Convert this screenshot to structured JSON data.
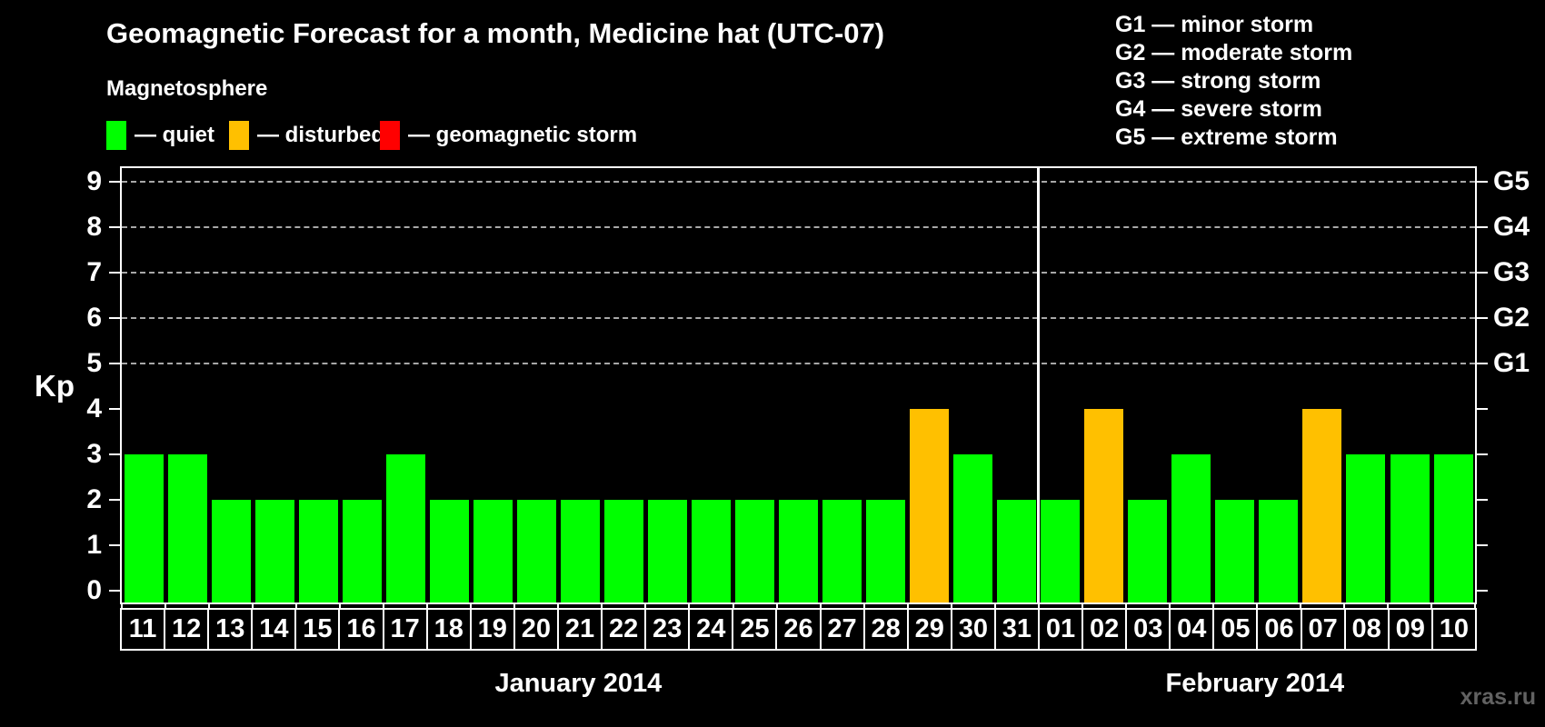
{
  "header": {
    "title": "Geomagnetic Forecast for a month, Medicine hat (UTC-07)",
    "subtitle": "Magnetosphere",
    "legend": [
      {
        "label": "— quiet",
        "status": "quiet"
      },
      {
        "label": "— disturbed",
        "status": "disturbed"
      },
      {
        "label": "— geomagnetic storm",
        "status": "storm"
      }
    ],
    "g_legend": [
      "G1 — minor storm",
      "G2 — moderate storm",
      "G3 — strong storm",
      "G4 — severe storm",
      "G5 — extreme storm"
    ]
  },
  "colors": {
    "quiet": "#00ff00",
    "disturbed": "#ffc000",
    "storm": "#ff0000",
    "background": "#000000",
    "text": "#ffffff",
    "grid": "#a8a8a8",
    "watermark": "#626262"
  },
  "chart_data": {
    "type": "bar",
    "title": "Geomagnetic Forecast for a month, Medicine hat (UTC-07)",
    "ylabel": "Kp",
    "ylim": [
      0,
      9
    ],
    "yticks": [
      0,
      1,
      2,
      3,
      4,
      5,
      6,
      7,
      8,
      9
    ],
    "grid_levels": [
      5,
      6,
      7,
      8,
      9
    ],
    "grid": "dashed-at-storm-levels-only",
    "legend_position": "top",
    "right_axis": [
      {
        "level": 5,
        "label": "G1"
      },
      {
        "level": 6,
        "label": "G2"
      },
      {
        "level": 7,
        "label": "G3"
      },
      {
        "level": 8,
        "label": "G4"
      },
      {
        "level": 9,
        "label": "G5"
      }
    ],
    "months": [
      {
        "label": "January 2014",
        "count": 21
      },
      {
        "label": "February 2014",
        "count": 10
      }
    ],
    "days": [
      {
        "day": "11",
        "kp": 3,
        "status": "quiet"
      },
      {
        "day": "12",
        "kp": 3,
        "status": "quiet"
      },
      {
        "day": "13",
        "kp": 2,
        "status": "quiet"
      },
      {
        "day": "14",
        "kp": 2,
        "status": "quiet"
      },
      {
        "day": "15",
        "kp": 2,
        "status": "quiet"
      },
      {
        "day": "16",
        "kp": 2,
        "status": "quiet"
      },
      {
        "day": "17",
        "kp": 3,
        "status": "quiet"
      },
      {
        "day": "18",
        "kp": 2,
        "status": "quiet"
      },
      {
        "day": "19",
        "kp": 2,
        "status": "quiet"
      },
      {
        "day": "20",
        "kp": 2,
        "status": "quiet"
      },
      {
        "day": "21",
        "kp": 2,
        "status": "quiet"
      },
      {
        "day": "22",
        "kp": 2,
        "status": "quiet"
      },
      {
        "day": "23",
        "kp": 2,
        "status": "quiet"
      },
      {
        "day": "24",
        "kp": 2,
        "status": "quiet"
      },
      {
        "day": "25",
        "kp": 2,
        "status": "quiet"
      },
      {
        "day": "26",
        "kp": 2,
        "status": "quiet"
      },
      {
        "day": "27",
        "kp": 2,
        "status": "quiet"
      },
      {
        "day": "28",
        "kp": 2,
        "status": "quiet"
      },
      {
        "day": "29",
        "kp": 4,
        "status": "disturbed"
      },
      {
        "day": "30",
        "kp": 3,
        "status": "quiet"
      },
      {
        "day": "31",
        "kp": 2,
        "status": "quiet"
      },
      {
        "day": "01",
        "kp": 2,
        "status": "quiet"
      },
      {
        "day": "02",
        "kp": 4,
        "status": "disturbed"
      },
      {
        "day": "03",
        "kp": 2,
        "status": "quiet"
      },
      {
        "day": "04",
        "kp": 3,
        "status": "quiet"
      },
      {
        "day": "05",
        "kp": 2,
        "status": "quiet"
      },
      {
        "day": "06",
        "kp": 2,
        "status": "quiet"
      },
      {
        "day": "07",
        "kp": 4,
        "status": "disturbed"
      },
      {
        "day": "08",
        "kp": 3,
        "status": "quiet"
      },
      {
        "day": "09",
        "kp": 3,
        "status": "quiet"
      },
      {
        "day": "10",
        "kp": 3,
        "status": "quiet"
      }
    ]
  },
  "watermark": "xras.ru"
}
